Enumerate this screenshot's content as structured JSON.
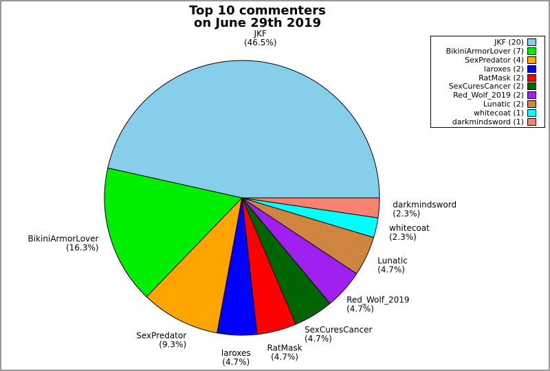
{
  "chart_data": {
    "type": "pie",
    "title": "Top 10 commenters",
    "subtitle": "on June 29th 2019",
    "start_angle_deg": 0,
    "direction": "counterclockwise",
    "label_distance": 1.1,
    "slices": [
      {
        "label": "JKF",
        "count": 20,
        "pct": 46.5,
        "color": "#87CEEB"
      },
      {
        "label": "BikiniArmorLover",
        "count": 7,
        "pct": 16.3,
        "color": "#00EE00"
      },
      {
        "label": "SexPredator",
        "count": 4,
        "pct": 9.3,
        "color": "#FFA500"
      },
      {
        "label": "laroxes",
        "count": 2,
        "pct": 4.7,
        "color": "#0000FF"
      },
      {
        "label": "RatMask",
        "count": 2,
        "pct": 4.7,
        "color": "#FF0000"
      },
      {
        "label": "SexCuresCancer",
        "count": 2,
        "pct": 4.7,
        "color": "#006400"
      },
      {
        "label": "Red_Wolf_2019",
        "count": 2,
        "pct": 4.7,
        "color": "#A020F0"
      },
      {
        "label": "Lunatic",
        "count": 2,
        "pct": 4.7,
        "color": "#CD853F"
      },
      {
        "label": "whitecoat",
        "count": 1,
        "pct": 2.3,
        "color": "#00FFFF"
      },
      {
        "label": "darkmindsword",
        "count": 1,
        "pct": 2.3,
        "color": "#FA8072"
      }
    ],
    "legend": {
      "position": "top-right",
      "entries": [
        "JKF (20)",
        "BikiniArmorLover (7)",
        "SexPredator (4)",
        "laroxes (2)",
        "RatMask (2)",
        "SexCuresCancer (2)",
        "Red_Wolf_2019 (2)",
        "Lunatic (2)",
        "whitecoat (1)",
        "darkmindsword (1)"
      ]
    }
  },
  "frame": {
    "background": "#ffffff",
    "border_color": "#979797"
  }
}
